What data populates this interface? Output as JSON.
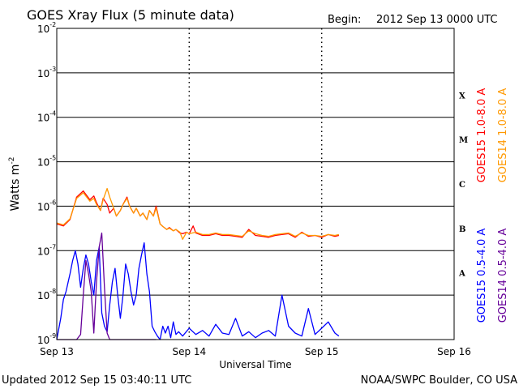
{
  "header": {
    "title": "GOES Xray Flux (5 minute data)",
    "begin_label": "Begin:",
    "begin_value": "2012 Sep 13 0000 UTC"
  },
  "footer": {
    "updated": "Updated 2012 Sep 15 03:40:11 UTC",
    "credit": "NOAA/SWPC Boulder, CO USA"
  },
  "chart_data": {
    "type": "line",
    "title": "GOES Xray Flux (5 minute data)",
    "xlabel": "Universal Time",
    "ylabel": "Watts m-2",
    "y_scale": "log",
    "ylim": [
      1e-09,
      0.01
    ],
    "xlim_days": [
      0,
      3
    ],
    "x_unit": "days since 2012 Sep 13 0000 UTC",
    "x_ticks": [
      {
        "day": 0,
        "label": "Sep 13"
      },
      {
        "day": 1,
        "label": "Sep 14"
      },
      {
        "day": 2,
        "label": "Sep 15"
      },
      {
        "day": 3,
        "label": "Sep 16"
      }
    ],
    "y_ticks": [
      {
        "exp": -9,
        "label": "10",
        "sup": "-9"
      },
      {
        "exp": -8,
        "label": "10",
        "sup": "-8"
      },
      {
        "exp": -7,
        "label": "10",
        "sup": "-7"
      },
      {
        "exp": -6,
        "label": "10",
        "sup": "-6"
      },
      {
        "exp": -5,
        "label": "10",
        "sup": "-5"
      },
      {
        "exp": -4,
        "label": "10",
        "sup": "-4"
      },
      {
        "exp": -3,
        "label": "10",
        "sup": "-3"
      },
      {
        "exp": -2,
        "label": "10",
        "sup": "-2"
      }
    ],
    "flare_classes": [
      {
        "label": "A",
        "exp": -7.5
      },
      {
        "label": "B",
        "exp": -6.5
      },
      {
        "label": "C",
        "exp": -5.5
      },
      {
        "label": "M",
        "exp": -4.5
      },
      {
        "label": "X",
        "exp": -3.5
      }
    ],
    "grid": true,
    "legend_position": "right-vertical",
    "series": [
      {
        "name": "GOES15 1.0-8.0 A",
        "color": "#ff0000",
        "x": [
          0.0,
          0.05,
          0.1,
          0.15,
          0.2,
          0.25,
          0.28,
          0.3,
          0.33,
          0.35,
          0.38,
          0.4,
          0.43,
          0.45,
          0.48,
          0.5,
          0.53,
          0.55,
          0.58,
          0.6,
          0.63,
          0.65,
          0.68,
          0.7,
          0.73,
          0.75,
          0.78,
          0.8,
          0.83,
          0.85,
          0.88,
          0.9,
          0.93,
          0.95,
          0.98,
          1.0,
          1.03,
          1.05,
          1.1,
          1.15,
          1.2,
          1.25,
          1.3,
          1.35,
          1.4,
          1.45,
          1.5,
          1.55,
          1.6,
          1.65,
          1.7,
          1.75,
          1.8,
          1.85,
          1.9,
          1.95,
          2.0,
          2.05,
          2.1,
          2.13
        ],
        "y": [
          4e-07,
          3.6e-07,
          5e-07,
          1.6e-06,
          2.2e-06,
          1.4e-06,
          1.7e-06,
          1.2e-06,
          8e-07,
          1.5e-06,
          1.1e-06,
          7e-07,
          9e-07,
          6e-07,
          8e-07,
          1.1e-06,
          1.6e-06,
          1e-06,
          7e-07,
          9e-07,
          6e-07,
          7e-07,
          5e-07,
          8e-07,
          6e-07,
          1e-06,
          4e-07,
          3.5e-07,
          3e-07,
          3.3e-07,
          2.8e-07,
          3e-07,
          2.5e-07,
          2.4e-07,
          2.6e-07,
          2.4e-07,
          3.6e-07,
          2.5e-07,
          2.2e-07,
          2.2e-07,
          2.4e-07,
          2.2e-07,
          2.2e-07,
          2.1e-07,
          2e-07,
          3e-07,
          2.2e-07,
          2.1e-07,
          2e-07,
          2.2e-07,
          2.3e-07,
          2.4e-07,
          2e-07,
          2.6e-07,
          2.1e-07,
          2.2e-07,
          2e-07,
          2.3e-07,
          2.1e-07,
          2.2e-07
        ]
      },
      {
        "name": "GOES14 1.0-8.0 A",
        "color": "#ff9900",
        "x": [
          0.0,
          0.05,
          0.1,
          0.15,
          0.2,
          0.25,
          0.28,
          0.3,
          0.33,
          0.35,
          0.38,
          0.4,
          0.43,
          0.45,
          0.48,
          0.5,
          0.53,
          0.55,
          0.58,
          0.6,
          0.63,
          0.65,
          0.68,
          0.7,
          0.73,
          0.75,
          0.78,
          0.8,
          0.83,
          0.85,
          0.88,
          0.9,
          0.93,
          0.95,
          0.98,
          1.0,
          1.05,
          1.1,
          1.15,
          1.2,
          1.25,
          1.3,
          1.35,
          1.4,
          1.45,
          1.5,
          1.55,
          1.6,
          1.65,
          1.7,
          1.75,
          1.8,
          1.85,
          1.9,
          1.95,
          2.0,
          2.05,
          2.1,
          2.13
        ],
        "y": [
          4.2e-07,
          3.8e-07,
          5.2e-07,
          1.5e-06,
          2e-06,
          1.3e-06,
          1.5e-06,
          1.1e-06,
          8e-07,
          1.4e-06,
          2.5e-06,
          1.6e-06,
          9e-07,
          6e-07,
          8e-07,
          1.1e-06,
          1.5e-06,
          1e-06,
          7e-07,
          9e-07,
          6e-07,
          7e-07,
          5e-07,
          8e-07,
          6e-07,
          9e-07,
          4e-07,
          3.5e-07,
          3e-07,
          3.2e-07,
          2.8e-07,
          3e-07,
          2.6e-07,
          1.8e-07,
          2.6e-07,
          2.4e-07,
          2.6e-07,
          2.3e-07,
          2.3e-07,
          2.5e-07,
          2.3e-07,
          2.3e-07,
          2.2e-07,
          2.1e-07,
          2.8e-07,
          2.4e-07,
          2.2e-07,
          2.1e-07,
          2.3e-07,
          2.4e-07,
          2.5e-07,
          2.1e-07,
          2.5e-07,
          2.2e-07,
          2.2e-07,
          2.1e-07,
          2.3e-07,
          2.2e-07,
          2.3e-07
        ]
      },
      {
        "name": "GOES15 0.5-4.0 A",
        "color": "#0000ff",
        "x": [
          0.0,
          0.03,
          0.05,
          0.07,
          0.1,
          0.12,
          0.14,
          0.16,
          0.18,
          0.2,
          0.22,
          0.24,
          0.26,
          0.28,
          0.3,
          0.32,
          0.34,
          0.36,
          0.38,
          0.4,
          0.42,
          0.44,
          0.46,
          0.48,
          0.5,
          0.52,
          0.54,
          0.56,
          0.58,
          0.6,
          0.62,
          0.64,
          0.66,
          0.68,
          0.7,
          0.72,
          0.74,
          0.76,
          0.78,
          0.8,
          0.82,
          0.84,
          0.86,
          0.88,
          0.9,
          0.92,
          0.95,
          1.0,
          1.05,
          1.1,
          1.15,
          1.2,
          1.25,
          1.3,
          1.35,
          1.4,
          1.45,
          1.5,
          1.55,
          1.6,
          1.65,
          1.7,
          1.75,
          1.8,
          1.85,
          1.9,
          1.95,
          2.0,
          2.05,
          2.1,
          2.13
        ],
        "y": [
          1e-09,
          3e-09,
          8e-09,
          1.2e-08,
          3e-08,
          6e-08,
          1e-07,
          5e-08,
          1.5e-08,
          4e-08,
          8e-08,
          5e-08,
          2e-08,
          1e-08,
          6e-08,
          1.2e-07,
          4e-09,
          2e-09,
          1.5e-09,
          6e-09,
          2e-08,
          4e-08,
          1e-08,
          3e-09,
          1e-08,
          5e-08,
          3e-08,
          1.2e-08,
          6e-09,
          1e-08,
          4e-08,
          8e-08,
          1.5e-07,
          3e-08,
          1.2e-08,
          2e-09,
          1.5e-09,
          1.2e-09,
          1e-09,
          2e-09,
          1.4e-09,
          2e-09,
          1.1e-09,
          2.5e-09,
          1.3e-09,
          1.5e-09,
          1.2e-09,
          1.8e-09,
          1.3e-09,
          1.6e-09,
          1.2e-09,
          2.2e-09,
          1.4e-09,
          1.3e-09,
          3e-09,
          1.2e-09,
          1.5e-09,
          1.1e-09,
          1.4e-09,
          1.6e-09,
          1.2e-09,
          1e-08,
          2e-09,
          1.4e-09,
          1.2e-09,
          5e-09,
          1.3e-09,
          1.8e-09,
          2.5e-09,
          1.4e-09,
          1.2e-09
        ]
      },
      {
        "name": "GOES14 0.5-4.0 A",
        "color": "#660099",
        "x": [
          0.0,
          0.05,
          0.1,
          0.15,
          0.18,
          0.2,
          0.22,
          0.24,
          0.26,
          0.28,
          0.3,
          0.32,
          0.34,
          0.36,
          0.38,
          0.4,
          0.42,
          0.45,
          0.48,
          0.5,
          0.55,
          0.6,
          0.65,
          0.7,
          0.75
        ],
        "y": [
          1e-09,
          1e-09,
          1e-09,
          1e-09,
          1.3e-09,
          1e-08,
          6e-08,
          3e-08,
          1.2e-08,
          1.4e-09,
          2e-08,
          1.2e-07,
          2.5e-07,
          1.5e-08,
          1.4e-09,
          1e-09,
          1e-09,
          1e-09,
          1e-09,
          1e-09,
          1e-09,
          1e-09,
          1e-09,
          1e-09,
          1e-09
        ]
      }
    ]
  }
}
